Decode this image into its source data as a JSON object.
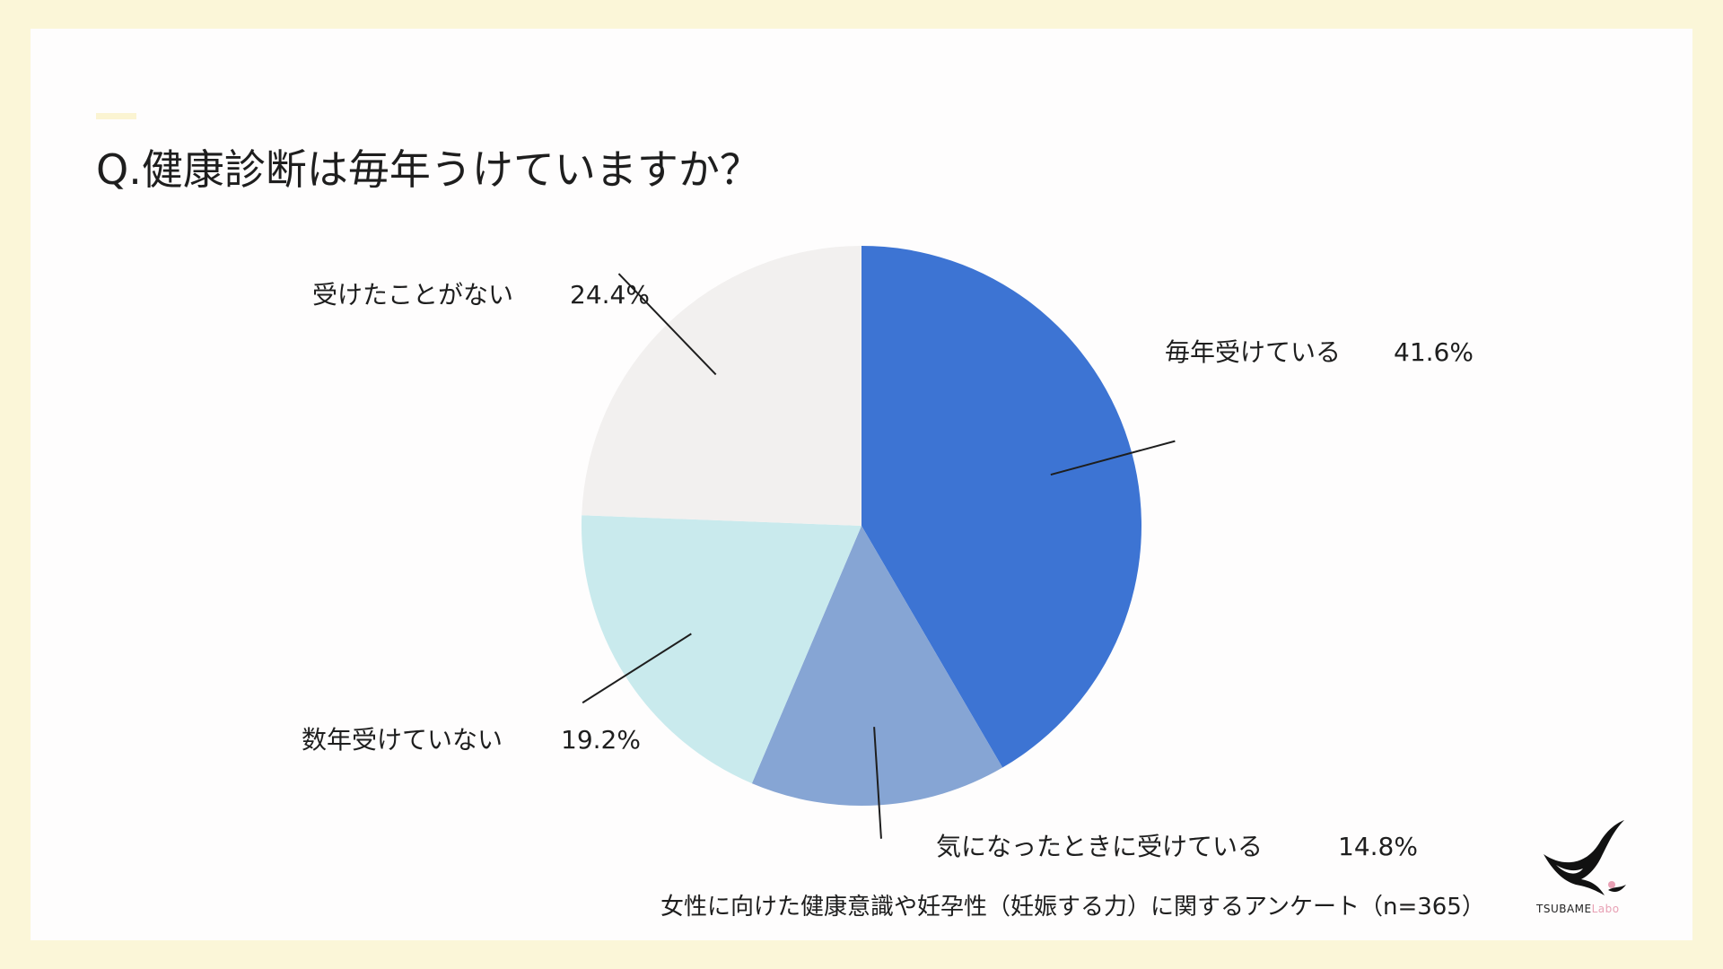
{
  "title": "Q.健康診断は毎年うけていますか？",
  "footnote": "女性に向けた健康意識や妊孕性（妊娠する力）に関するアンケート（n=365）",
  "logo": {
    "name_main": "TSUBAME",
    "name_sub": "Labo",
    "icon": "swallow-bird-icon"
  },
  "colors": {
    "page_background": "#FBF6D8",
    "card_background": "#FEFDFD",
    "accent": "#FBF4D2"
  },
  "chart_data": {
    "type": "pie",
    "start": "12 o'clock",
    "direction": "clockwise",
    "slices": [
      {
        "label": "毎年受けている",
        "value": 41.6,
        "value_label": "41.6%",
        "color": "#3D74D3"
      },
      {
        "label": "気になったときに受けている",
        "value": 14.8,
        "value_label": "14.8%",
        "color": "#86A5D4"
      },
      {
        "label": "数年受けていない",
        "value": 19.2,
        "value_label": "19.2%",
        "color": "#C9EAED"
      },
      {
        "label": "受けたことがない",
        "value": 24.4,
        "value_label": "24.4%",
        "color": "#F2F0EF"
      }
    ]
  }
}
